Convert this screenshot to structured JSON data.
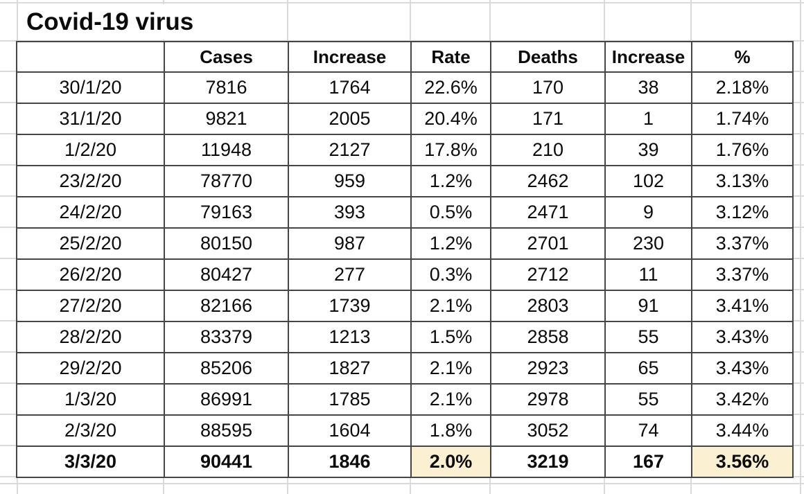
{
  "title": "Covid-19 virus",
  "table": {
    "column_headers": [
      "",
      "Cases",
      "Increase",
      "Rate",
      "Deaths",
      "Increase",
      "%"
    ],
    "rows": [
      [
        "30/1/20",
        "7816",
        "1764",
        "22.6%",
        "170",
        "38",
        "2.18%"
      ],
      [
        "31/1/20",
        "9821",
        "2005",
        "20.4%",
        "171",
        "1",
        "1.74%"
      ],
      [
        "1/2/20",
        "11948",
        "2127",
        "17.8%",
        "210",
        "39",
        "1.76%"
      ],
      [
        "23/2/20",
        "78770",
        "959",
        "1.2%",
        "2462",
        "102",
        "3.13%"
      ],
      [
        "24/2/20",
        "79163",
        "393",
        "0.5%",
        "2471",
        "9",
        "3.12%"
      ],
      [
        "25/2/20",
        "80150",
        "987",
        "1.2%",
        "2701",
        "230",
        "3.37%"
      ],
      [
        "26/2/20",
        "80427",
        "277",
        "0.3%",
        "2712",
        "11",
        "3.37%"
      ],
      [
        "27/2/20",
        "82166",
        "1739",
        "2.1%",
        "2803",
        "91",
        "3.41%"
      ],
      [
        "28/2/20",
        "83379",
        "1213",
        "1.5%",
        "2858",
        "55",
        "3.43%"
      ],
      [
        "29/2/20",
        "85206",
        "1827",
        "2.1%",
        "2923",
        "65",
        "3.43%"
      ],
      [
        "1/3/20",
        "86991",
        "1785",
        "2.1%",
        "2978",
        "55",
        "3.42%"
      ],
      [
        "2/3/20",
        "88595",
        "1604",
        "1.8%",
        "3052",
        "74",
        "3.44%"
      ],
      [
        "3/3/20",
        "90441",
        "1846",
        "2.0%",
        "3219",
        "167",
        "3.56%"
      ]
    ],
    "bold_row_index": 12,
    "highlight_col_indexes": [
      3,
      6
    ]
  },
  "colors": {
    "highlight": "#FCF0D2",
    "border_dark": "#454545",
    "gridline": "#DADADA"
  }
}
